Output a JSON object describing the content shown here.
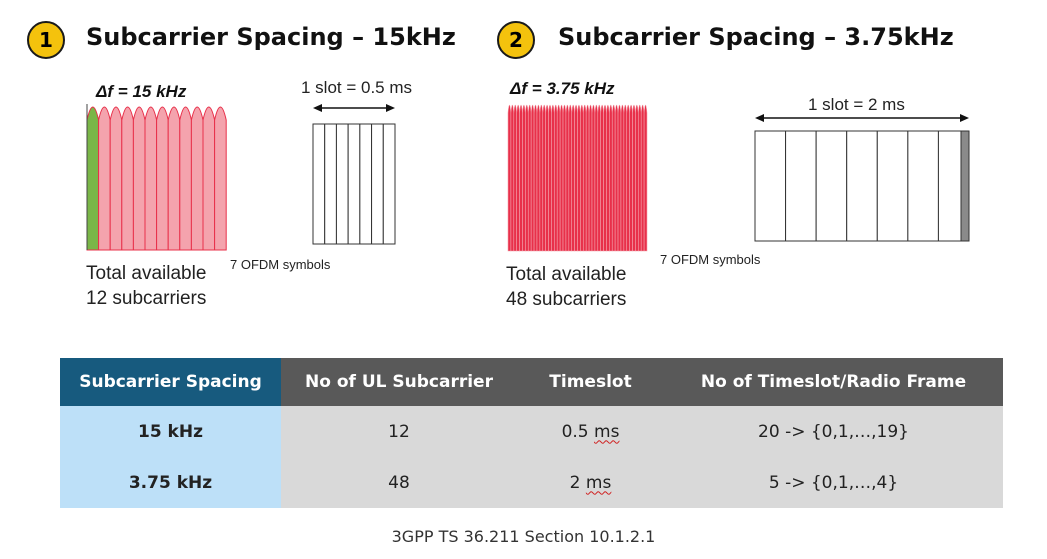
{
  "sections": [
    {
      "number": "1",
      "title": "Subcarrier Spacing – 15kHz",
      "delta": "Δf = 15 kHz",
      "slot": "1 slot = 0.5 ms",
      "symbols": "7 OFDM symbols",
      "avail_line1": "Total available",
      "avail_line2": "12 subcarriers"
    },
    {
      "number": "2",
      "title": "Subcarrier Spacing – 3.75kHz",
      "delta": "Δf = 3.75 kHz",
      "slot": "1 slot = 2 ms",
      "symbols": "7 OFDM symbols",
      "avail_line1": "Total available",
      "avail_line2": "48 subcarriers"
    }
  ],
  "colors": {
    "badge": "#f4c20d",
    "spectrum_pink": "#f4a3ad",
    "spectrum_red": "#e8304a",
    "highlight_green": "#7ab648",
    "header_blue": "#175a7e",
    "header_gray": "#595959",
    "cell_blue": "#bde0f8",
    "cell_gray": "#d9d9d9"
  },
  "table": {
    "headers": [
      "Subcarrier Spacing",
      "No of UL Subcarrier",
      "Timeslot",
      "No of Timeslot/Radio Frame"
    ],
    "rows": [
      {
        "spacing": "15 kHz",
        "subcarriers": "12",
        "timeslot_value": "0.5",
        "timeslot_unit": "ms",
        "per_frame": "20 -> {0,1,…,19}"
      },
      {
        "spacing": "3.75 kHz",
        "subcarriers": "48",
        "timeslot_value": "2",
        "timeslot_unit": "ms",
        "per_frame": "5 -> {0,1,…,4}"
      }
    ]
  },
  "caption": "3GPP TS 36.211 Section 10.1.2.1"
}
